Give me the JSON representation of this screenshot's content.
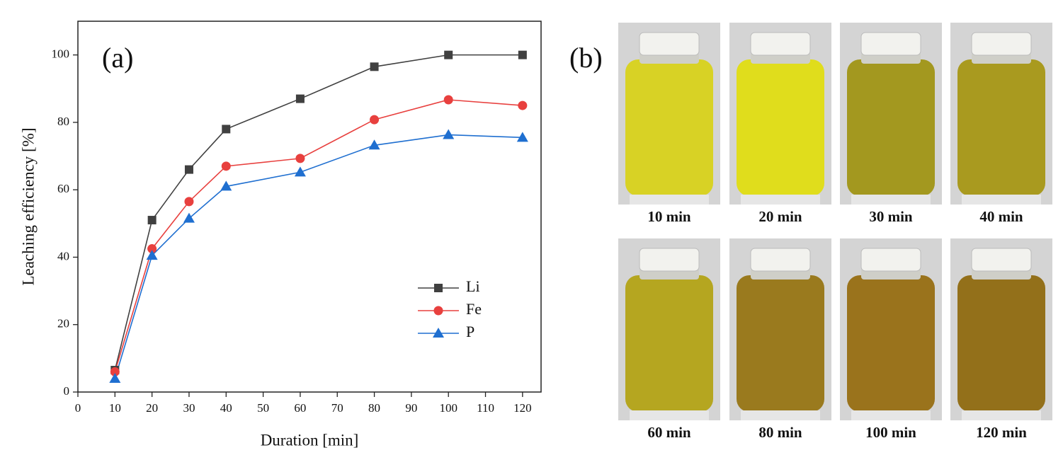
{
  "chart_data": {
    "type": "line",
    "annotation": "(a)",
    "x_label": "Duration [min]",
    "y_label": "Leaching efficiency [%]",
    "x": [
      10,
      20,
      30,
      40,
      60,
      80,
      100,
      120
    ],
    "series": [
      {
        "name": "Li",
        "color": "#404040",
        "marker": "square",
        "values": [
          6.5,
          51,
          66,
          78,
          87,
          96.5,
          100,
          100
        ]
      },
      {
        "name": "Fe",
        "color": "#e8403e",
        "marker": "circle",
        "values": [
          6,
          42.5,
          56.5,
          67,
          69.3,
          80.8,
          86.7,
          85
        ]
      },
      {
        "name": "P",
        "color": "#1f6fd0",
        "marker": "triangle",
        "values": [
          4,
          40.5,
          51.5,
          61,
          65.2,
          73.2,
          76.3,
          75.5
        ]
      }
    ],
    "xlim": [
      0,
      125
    ],
    "xticks": [
      0,
      10,
      20,
      30,
      40,
      50,
      60,
      70,
      80,
      90,
      100,
      110,
      120
    ],
    "ylim": [
      0,
      110
    ],
    "yticks": [
      0,
      20,
      40,
      60,
      80,
      100
    ],
    "legend": "lower right"
  },
  "photo_panel": {
    "label": "(b)",
    "captions": [
      "10 min",
      "20 min",
      "30 min",
      "40 min",
      "60 min",
      "80 min",
      "100 min",
      "120 min"
    ]
  }
}
